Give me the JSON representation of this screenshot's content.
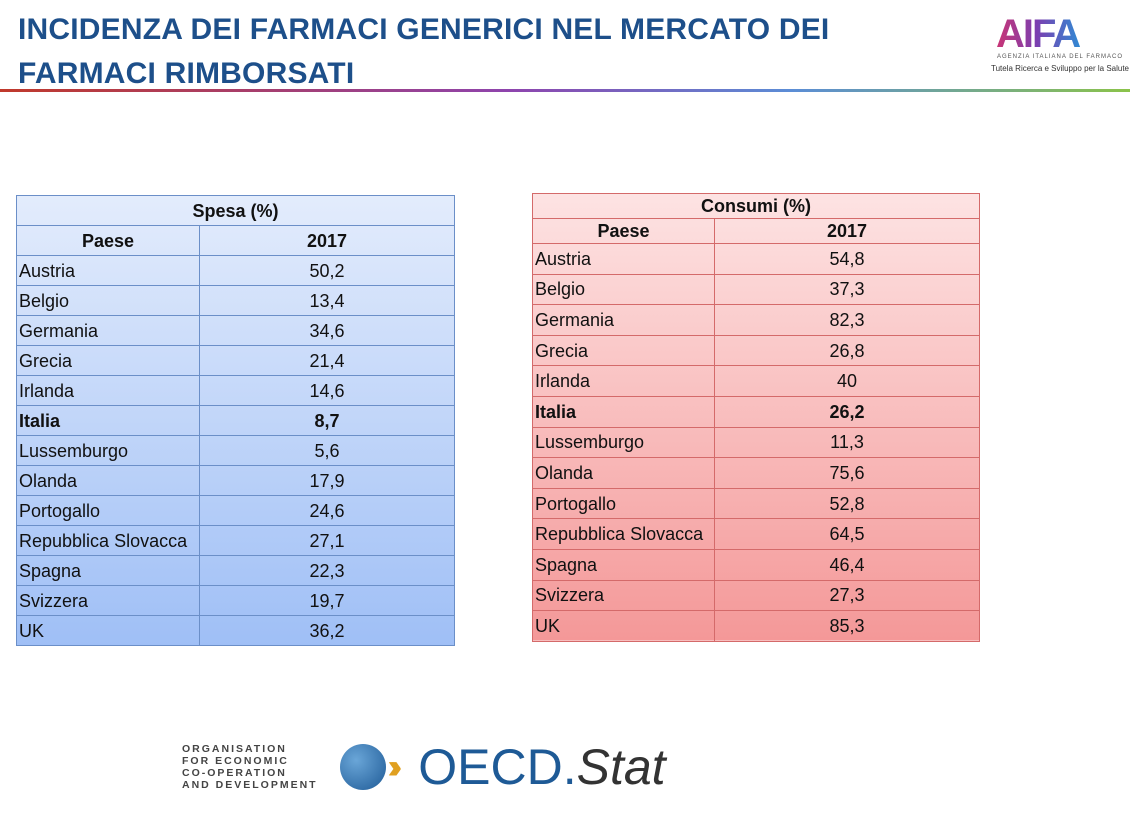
{
  "title_line1": "INCIDENZA DEI FARMACI GENERICI NEL MERCATO DEI",
  "title_line2": "FARMACI RIMBORSATI",
  "logo": {
    "name": "AIFA",
    "subtitle": "AGENZIA ITALIANA DEL FARMACO",
    "tagline": "Tutela Ricerca e Sviluppo per la Salute"
  },
  "spesa": {
    "header": "Spesa (%)",
    "col1": "Paese",
    "col2": "2017",
    "rows": [
      [
        "Austria",
        "50,2"
      ],
      [
        "Belgio",
        "13,4"
      ],
      [
        "Germania",
        "34,6"
      ],
      [
        "Grecia",
        "21,4"
      ],
      [
        "Irlanda",
        "14,6"
      ],
      [
        "Italia",
        "8,7"
      ],
      [
        "Lussemburgo",
        "5,6"
      ],
      [
        "Olanda",
        "17,9"
      ],
      [
        "Portogallo",
        "24,6"
      ],
      [
        "Repubblica Slovacca",
        "27,1"
      ],
      [
        "Spagna",
        "22,3"
      ],
      [
        "Svizzera",
        "19,7"
      ],
      [
        "UK",
        "36,2"
      ]
    ]
  },
  "consumi": {
    "header": "Consumi (%)",
    "col1": "Paese",
    "col2": "2017",
    "rows": [
      [
        "Austria",
        "54,8"
      ],
      [
        "Belgio",
        "37,3"
      ],
      [
        "Germania",
        "82,3"
      ],
      [
        "Grecia",
        "26,8"
      ],
      [
        "Irlanda",
        "40"
      ],
      [
        "Italia",
        "26,2"
      ],
      [
        "Lussemburgo",
        "11,3"
      ],
      [
        "Olanda",
        "75,6"
      ],
      [
        "Portogallo",
        "52,8"
      ],
      [
        "Repubblica Slovacca",
        "64,5"
      ],
      [
        "Spagna",
        "46,4"
      ],
      [
        "Svizzera",
        "27,3"
      ],
      [
        "UK",
        "85,3"
      ]
    ]
  },
  "oecd": {
    "org": [
      "ORGANISATION",
      "FOR ECONOMIC",
      "CO-OPERATION",
      "AND DEVELOPMENT"
    ],
    "brand": "OECD.",
    "brand2": "Stat"
  }
}
